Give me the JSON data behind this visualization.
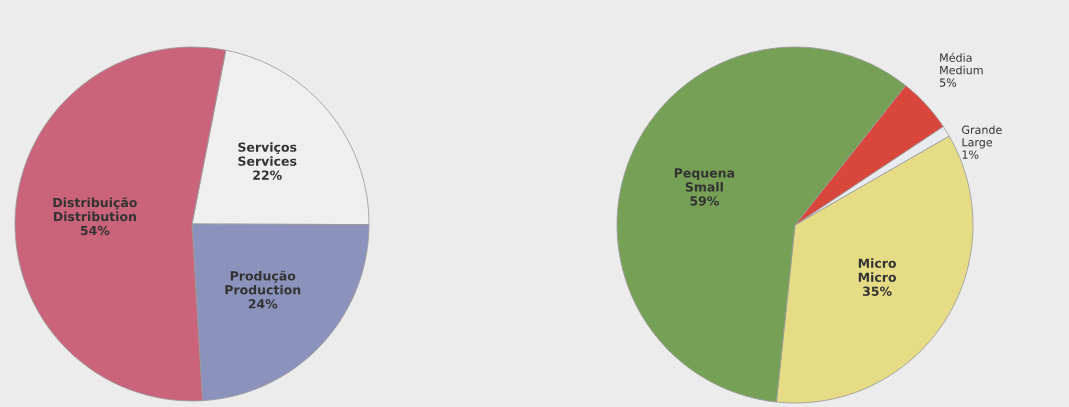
{
  "chart_data": [
    {
      "type": "pie",
      "categories": [
        "Serviços\nServices",
        "Produção\nProduction",
        "Distribuição\nDistribution"
      ],
      "values": [
        22,
        24,
        54
      ],
      "value_labels": [
        "22%",
        "24%",
        "54%"
      ],
      "colors": [
        "#efefef",
        "#8b93bd",
        "#c9647a"
      ]
    },
    {
      "type": "pie",
      "categories": [
        "Micro\nMicro",
        "Grande\nLarge",
        "Média\nMedium",
        "Pequena\nSmall"
      ],
      "values": [
        35,
        1,
        5,
        59
      ],
      "value_labels": [
        "35%",
        "1%",
        "5%",
        "59%"
      ],
      "colors": [
        "#e6dc86",
        "#e8ecf0",
        "#d9463c",
        "#76a055"
      ]
    }
  ]
}
